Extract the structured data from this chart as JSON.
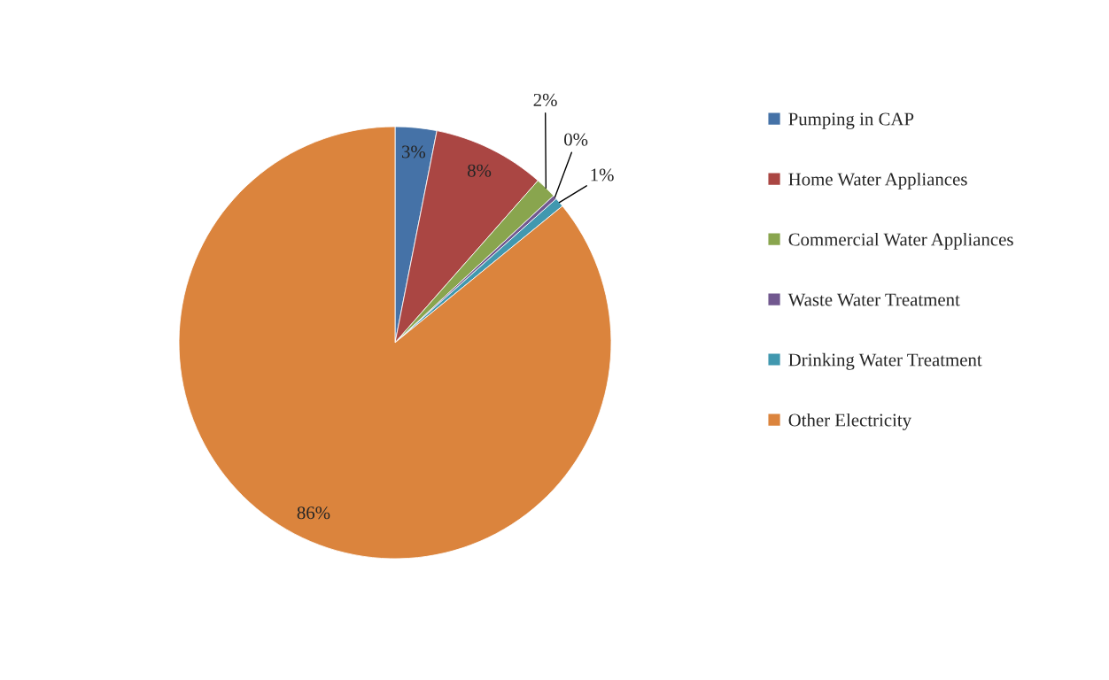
{
  "chart_data": {
    "type": "pie",
    "categories": [
      "Pumping in CAP",
      "Home Water Appliances",
      "Commercial Water Appliances",
      "Waste Water Treatment",
      "Drinking Water Treatment",
      "Other Electricity"
    ],
    "values": [
      3.1,
      8.4,
      1.6,
      0.3,
      0.7,
      85.9
    ],
    "value_labels": [
      "3%",
      "8%",
      "2%",
      "0%",
      "1%",
      "86%"
    ],
    "colors": [
      "#4572a7",
      "#aa4643",
      "#89a54e",
      "#71588f",
      "#4198af",
      "#db843d"
    ],
    "legend": "right"
  }
}
